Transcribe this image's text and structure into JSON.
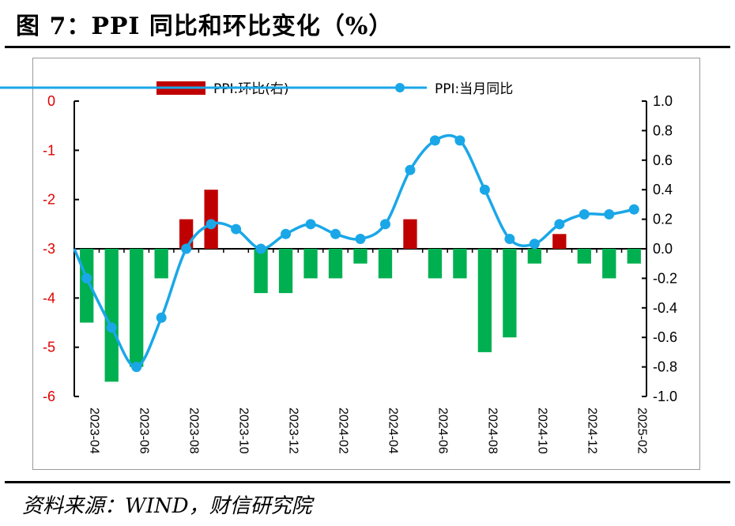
{
  "header": {
    "title": "图 7：PPI 同比和环比变化（%）"
  },
  "footer": {
    "source": "资料来源：WIND，财信研究院"
  },
  "chart_data": {
    "type": "bar+line",
    "months": [
      "2023-04",
      "2023-05",
      "2023-06",
      "2023-07",
      "2023-08",
      "2023-09",
      "2023-10",
      "2023-11",
      "2023-12",
      "2024-01",
      "2024-02",
      "2024-03",
      "2024-04",
      "2024-05",
      "2024-06",
      "2024-07",
      "2024-08",
      "2024-09",
      "2024-10",
      "2024-11",
      "2024-12",
      "2025-01",
      "2025-02"
    ],
    "tick_labels": [
      "2023-04",
      "2023-06",
      "2023-08",
      "2023-10",
      "2023-12",
      "2024-02",
      "2024-04",
      "2024-06",
      "2024-08",
      "2024-10",
      "2024-12",
      "2025-02"
    ],
    "series": [
      {
        "name": "PPI:环比(右)",
        "type": "bar",
        "axis": "right",
        "values": [
          -0.5,
          -0.9,
          -0.8,
          -0.2,
          0.2,
          0.4,
          0.0,
          -0.3,
          -0.3,
          -0.2,
          -0.2,
          -0.1,
          -0.2,
          0.2,
          -0.2,
          -0.2,
          -0.7,
          -0.6,
          -0.1,
          0.1,
          -0.1,
          -0.2,
          -0.1
        ],
        "positive_color": "#c00000",
        "negative_color": "#00b050"
      },
      {
        "name": "PPI:当月同比",
        "type": "line",
        "axis": "left",
        "values": [
          -3.6,
          -4.6,
          -5.4,
          -4.4,
          -3.0,
          -2.5,
          -2.6,
          -3.0,
          -2.7,
          -2.5,
          -2.7,
          -2.8,
          -2.5,
          -1.4,
          -0.8,
          -0.8,
          -1.8,
          -2.8,
          -2.9,
          -2.5,
          -2.3,
          -2.3,
          -2.2
        ],
        "color": "#1aa7e8"
      }
    ],
    "left_axis": {
      "range": [
        -6,
        0
      ],
      "ticks": [
        "0",
        "-1",
        "-2",
        "-3",
        "-4",
        "-5",
        "-6"
      ],
      "color": "#e00000"
    },
    "right_axis": {
      "range": [
        -1.0,
        1.0
      ],
      "ticks": [
        "1.0",
        "0.8",
        "0.6",
        "0.4",
        "0.2",
        "0.0",
        "-0.2",
        "-0.4",
        "-0.6",
        "-0.8",
        "-1.0"
      ]
    },
    "legend": {
      "position": "top"
    },
    "grid": false
  }
}
